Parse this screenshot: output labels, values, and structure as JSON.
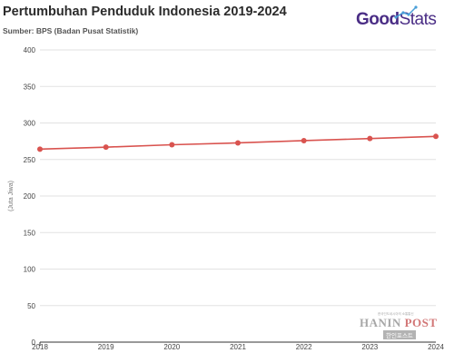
{
  "header": {
    "title": "Pertumbuhan Penduduk Indonesia 2019-2024",
    "subtitle": "Sumber: BPS (Badan Pusat Statistik)"
  },
  "logo": {
    "part1": "Good",
    "part2": "Stats",
    "color": "#4a2d85"
  },
  "watermark": {
    "small_text": "한국인도네시아의 소통통신",
    "main_left": "HANIN",
    "main_right": "POST",
    "sub": "한인포스트"
  },
  "chart_data": {
    "type": "line",
    "title": "Pertumbuhan Penduduk Indonesia 2019-2024",
    "subtitle": "Sumber: BPS (Badan Pusat Statistik)",
    "xlabel": "",
    "ylabel": "(Juta Jiwa)",
    "categories": [
      "2018",
      "2019",
      "2020",
      "2021",
      "2022",
      "2023",
      "2024"
    ],
    "series": [
      {
        "values": [
          264.2,
          266.9,
          270.2,
          272.7,
          275.8,
          278.7,
          281.6
        ],
        "color": "#d9534f"
      }
    ],
    "ylim": [
      0,
      400
    ],
    "yticks": [
      0,
      50,
      100,
      150,
      200,
      250,
      300,
      350,
      400
    ],
    "grid": true,
    "legend": "none"
  }
}
